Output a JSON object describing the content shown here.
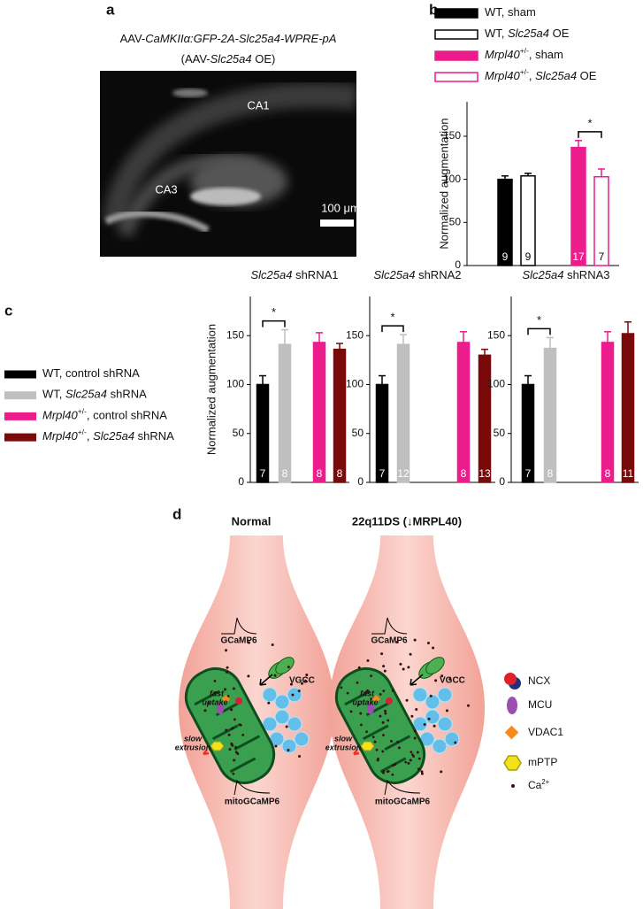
{
  "figure": {
    "panel_labels": [
      "a",
      "b",
      "c",
      "d"
    ],
    "a": {
      "title": [
        [
          {
            "text": "AAV-"
          },
          {
            "text": "CaMKIIα:GFP-2A-Slc25a4-WPRE-pA",
            "italic": true
          }
        ],
        [
          {
            "text": "(AAV-"
          },
          {
            "text": "Slc25a4",
            "italic": true
          },
          {
            "text": " OE)"
          }
        ]
      ],
      "regions": [
        "CA1",
        "CA3"
      ],
      "scale_bar": "100 μm"
    },
    "legend_c": [
      {
        "name": [
          {
            "text": "WT, control shRNA"
          }
        ],
        "color": "#000000"
      },
      {
        "name": [
          {
            "text": "WT, "
          },
          {
            "text": "Slc25a4",
            "italic": true
          },
          {
            "text": " shRNA"
          }
        ],
        "color": "#bfbfbf"
      },
      {
        "name": [
          {
            "text": "Mrpl40",
            "italic": true
          },
          {
            "text": "+/-",
            "sup": true
          },
          {
            "text": ", control shRNA"
          }
        ],
        "color": "#ec1c8c"
      },
      {
        "name": [
          {
            "text": "Mrpl40",
            "italic": true
          },
          {
            "text": "+/-",
            "sup": true
          },
          {
            "text": ", "
          },
          {
            "text": "Slc25a4",
            "italic": true
          },
          {
            "text": " shRNA"
          }
        ],
        "color": "#7a0a0a"
      }
    ],
    "d": {
      "conditions": [
        "Normal",
        "22q11DS (↓MRPL40)"
      ],
      "neuron_labels": {
        "gcamp": "GCaMP6",
        "vgcc": "VGCC",
        "fast": [
          "fast",
          "uptake"
        ],
        "slow": [
          "slow",
          "extrusion"
        ],
        "mito": "mitoGCaMP6"
      },
      "legend": [
        {
          "name": [
            {
              "text": "NCX"
            }
          ]
        },
        {
          "name": [
            {
              "text": "MCU"
            }
          ]
        },
        {
          "name": [
            {
              "text": "VDAC1"
            }
          ]
        },
        {
          "name": [
            {
              "text": "mPTP"
            }
          ]
        },
        {
          "name": [
            {
              "text": "Ca"
            },
            {
              "text": "2+",
              "sup": true
            }
          ]
        }
      ]
    }
  },
  "chart_data": [
    {
      "type": "bar",
      "ylabel": "Normalized augmentation",
      "ylim": [
        0,
        190
      ],
      "yticks": [
        0,
        50,
        100,
        150
      ],
      "series": [
        {
          "name": [
            {
              "text": "WT, sham"
            }
          ],
          "color": "#000000",
          "hollow": false,
          "values": [
            100
          ],
          "errors": [
            4
          ],
          "n_labels": [
            9
          ]
        },
        {
          "name": [
            {
              "text": "WT, "
            },
            {
              "text": "Slc25a4",
              "italic": true
            },
            {
              "text": " OE"
            }
          ],
          "color": "#000000",
          "hollow": true,
          "values": [
            104
          ],
          "errors": [
            3
          ],
          "n_labels": [
            9
          ]
        },
        {
          "name": [
            {
              "text": "Mrpl40",
              "italic": true
            },
            {
              "text": "+/-",
              "sup": true
            },
            {
              "text": ", sham"
            }
          ],
          "color": "#ec1c8c",
          "hollow": false,
          "values": [
            137
          ],
          "errors": [
            8
          ],
          "n_labels": [
            17
          ]
        },
        {
          "name": [
            {
              "text": "Mrpl40",
              "italic": true
            },
            {
              "text": "+/-",
              "sup": true
            },
            {
              "text": ", "
            },
            {
              "text": "Slc25a4",
              "italic": true
            },
            {
              "text": " OE"
            }
          ],
          "color": "#ec1c8c",
          "hollow": true,
          "values": [
            103
          ],
          "errors": [
            9
          ],
          "n_labels": [
            7
          ]
        }
      ],
      "significance": [
        {
          "pair": [
            2,
            3
          ],
          "label": "*"
        }
      ]
    },
    {
      "type": "bar",
      "title": [
        {
          "text": "Slc25a4",
          "italic": true
        },
        {
          "text": " shRNA1"
        }
      ],
      "ylabel": "Normalized augmentation",
      "ylim": [
        0,
        190
      ],
      "yticks": [
        0,
        50,
        100,
        150
      ],
      "values": [
        100,
        141,
        143,
        136
      ],
      "errors": [
        9,
        15,
        10,
        6
      ],
      "n_labels": [
        7,
        8,
        8,
        8
      ],
      "colors": [
        "#000000",
        "#bfbfbf",
        "#ec1c8c",
        "#7a0a0a"
      ],
      "significance": [
        {
          "pair": [
            0,
            1
          ],
          "label": "*"
        }
      ]
    },
    {
      "type": "bar",
      "title": [
        {
          "text": "Slc25a4",
          "italic": true
        },
        {
          "text": " shRNA2"
        }
      ],
      "ylim": [
        0,
        190
      ],
      "yticks": [
        0,
        50,
        100,
        150
      ],
      "values": [
        100,
        141,
        143,
        130
      ],
      "errors": [
        9,
        10,
        11,
        6
      ],
      "n_labels": [
        7,
        12,
        8,
        13
      ],
      "colors": [
        "#000000",
        "#bfbfbf",
        "#ec1c8c",
        "#7a0a0a"
      ],
      "significance": [
        {
          "pair": [
            0,
            1
          ],
          "label": "*"
        }
      ]
    },
    {
      "type": "bar",
      "title": [
        {
          "text": "Slc25a4",
          "italic": true
        },
        {
          "text": " shRNA3"
        }
      ],
      "ylim": [
        0,
        190
      ],
      "yticks": [
        0,
        50,
        100,
        150
      ],
      "values": [
        100,
        137,
        143,
        152
      ],
      "errors": [
        9,
        11,
        11,
        12
      ],
      "n_labels": [
        7,
        8,
        8,
        11
      ],
      "colors": [
        "#000000",
        "#bfbfbf",
        "#ec1c8c",
        "#7a0a0a"
      ],
      "significance": [
        {
          "pair": [
            0,
            1
          ],
          "label": "*"
        }
      ]
    }
  ]
}
